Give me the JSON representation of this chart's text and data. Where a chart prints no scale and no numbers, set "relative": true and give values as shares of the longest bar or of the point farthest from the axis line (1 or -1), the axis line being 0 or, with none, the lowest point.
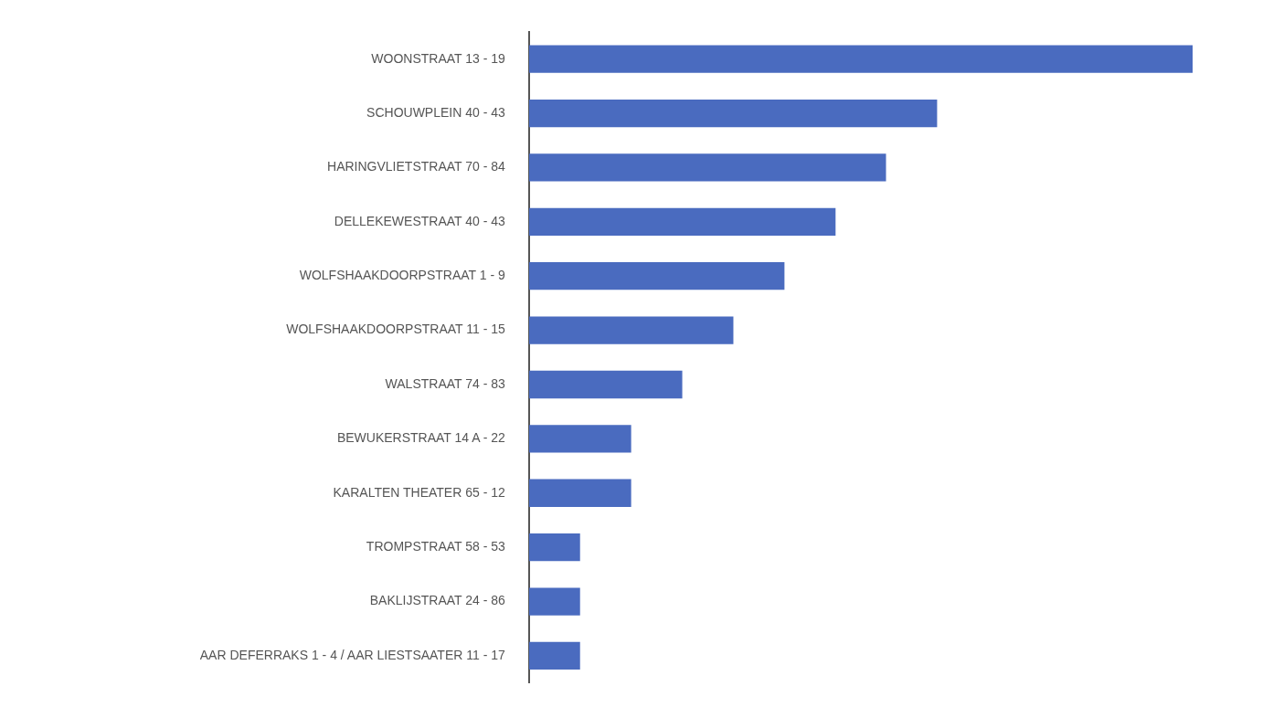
{
  "chart_data": {
    "type": "bar",
    "orientation": "horizontal",
    "relative": true,
    "categories": [
      "WOONSTRAAT 13 - 19",
      "SCHOUWPLEIN 40 - 43",
      "HARINGVLIETSTRAAT 70 - 84",
      "DELLEKEWESTRAAT 40 - 43",
      "WOLFSHAAKDOORPSTRAAT 1 - 9",
      "WOLFSHAAKDOORPSTRAAT 11 - 15",
      "WALSTRAAT 74 - 83",
      "BEWUKERSTRAAT 14 A - 22",
      "KARALTEN THEATER 65 - 12",
      "TROMPSTRAAT 58 - 53",
      "BAKLIJSTRAAT 24 - 86",
      "AAR DEFERRAKS 1 - 4 / AAR LIESTSAATER 11 - 17"
    ],
    "values": [
      1,
      0.615,
      0.538,
      0.462,
      0.385,
      0.308,
      0.231,
      0.154,
      0.154,
      0.077,
      0.077,
      0.077
    ],
    "color": "#4a6bbf"
  }
}
